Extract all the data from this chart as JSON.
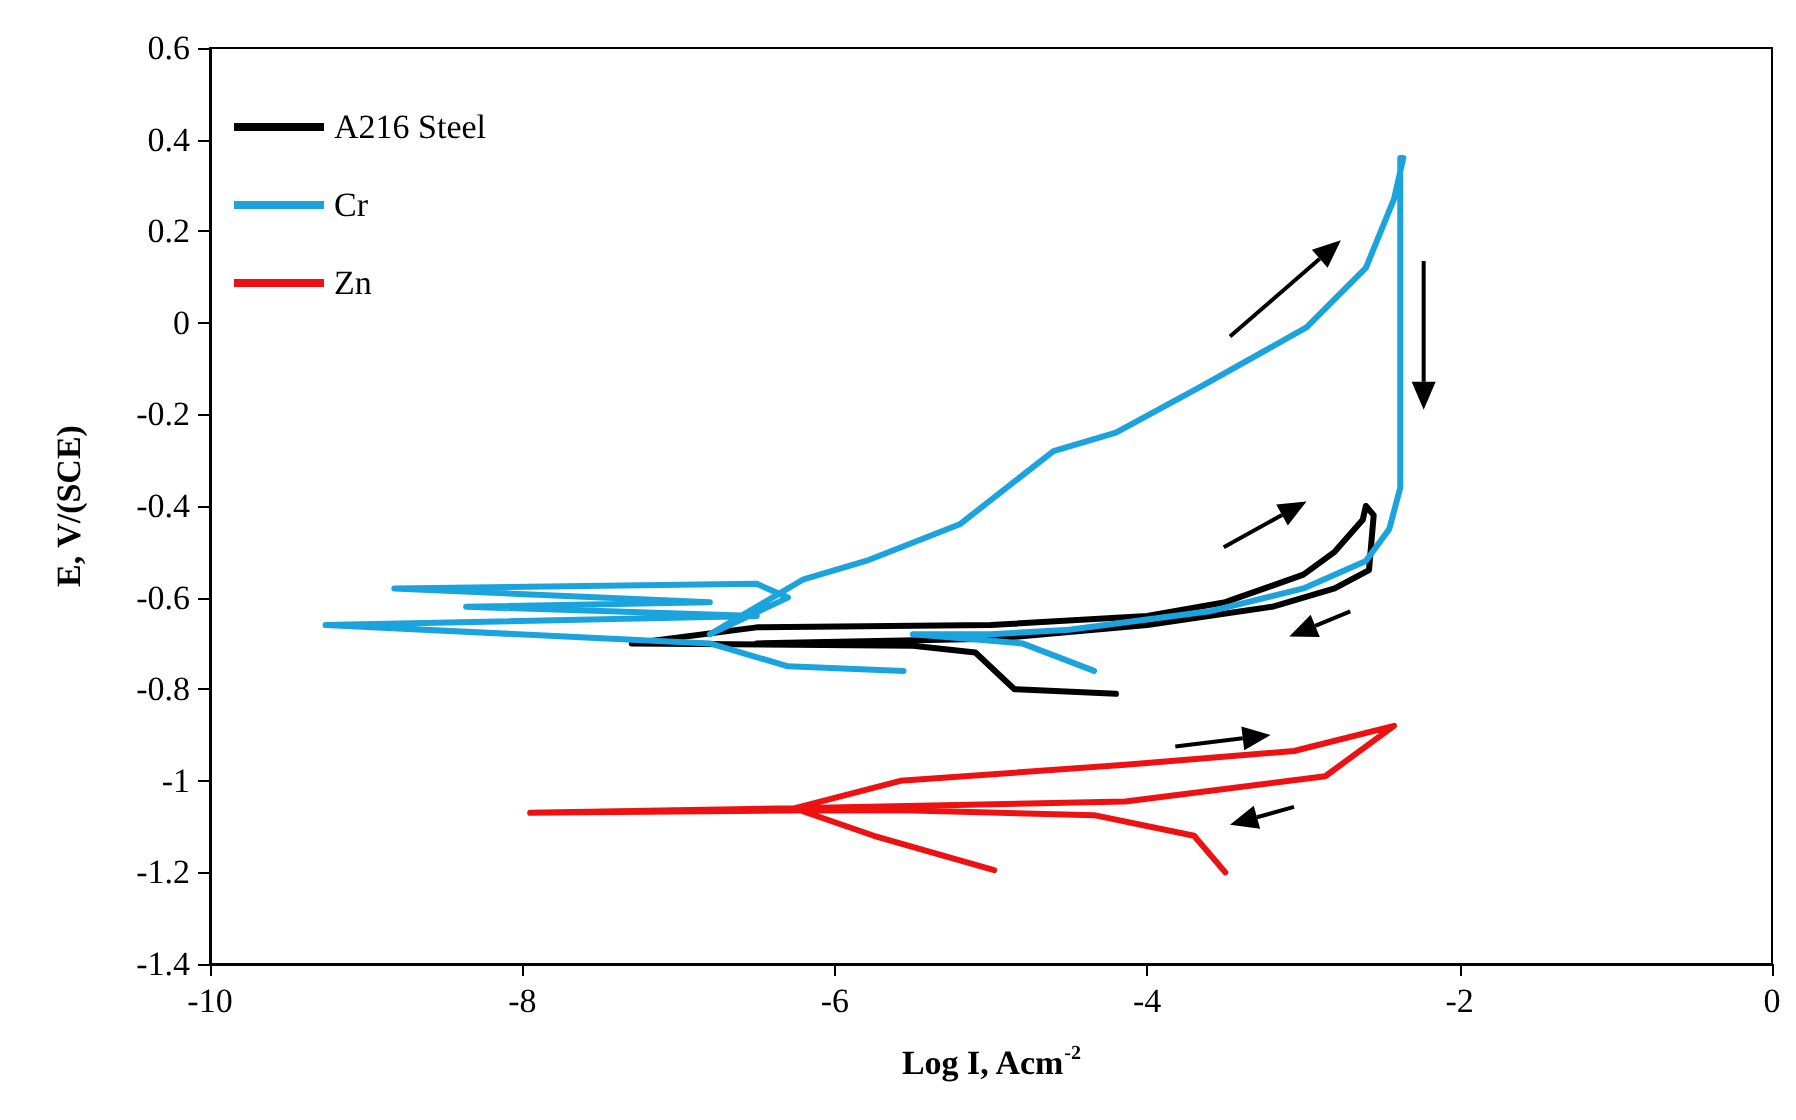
{
  "chart_data": {
    "type": "line",
    "xlabel": "Log I, Acm$^{-2}$",
    "ylabel": "E, V/(SCE)",
    "xlim": [
      -10,
      0
    ],
    "xticks": [
      -10,
      -8,
      -6,
      -4,
      -2,
      0
    ],
    "ylim": [
      -1.4,
      0.6
    ],
    "yticks": [
      -1.4,
      -1.2,
      -1,
      -0.8,
      -0.6,
      -0.4,
      -0.2,
      0,
      0.2,
      0.4,
      0.6
    ],
    "grid": false,
    "legend": "top left",
    "marker": "none",
    "line_style": "solid",
    "series": [
      {
        "name": "A216 Steel",
        "color": "#000000",
        "x": [
          -4.2,
          -4.85,
          -5.1,
          -5.5,
          -7.3,
          -6.5,
          -5,
          -4,
          -3.5,
          -3,
          -2.8,
          -2.62,
          -2.6,
          -2.55,
          -2.58,
          -2.8,
          -3.2,
          -4,
          -5,
          -6.5
        ],
        "values": [
          -0.81,
          -0.8,
          -0.72,
          -0.705,
          -0.7,
          -0.665,
          -0.66,
          -0.64,
          -0.61,
          -0.55,
          -0.5,
          -0.43,
          -0.4,
          -0.42,
          -0.54,
          -0.58,
          -0.62,
          -0.66,
          -0.69,
          -0.7
        ]
      },
      {
        "name": "Cr",
        "color": "#1aa3dd",
        "x": [
          -5.56,
          -6.3,
          -6.8,
          -9.26,
          -6.5,
          -8.36,
          -6.8,
          -8.82,
          -6.5,
          -6.3,
          -6.8,
          -6.2,
          -5.8,
          -5.2,
          -4.6,
          -4.2,
          -3.66,
          -2.98,
          -2.6,
          -2.42,
          -2.36,
          -2.38,
          -2.38,
          -2.45,
          -2.6,
          -3,
          -3.6,
          -4.5,
          -5,
          -5.5,
          -4.8,
          -4.34
        ],
        "values": [
          -0.76,
          -0.75,
          -0.7,
          -0.66,
          -0.64,
          -0.62,
          -0.61,
          -0.58,
          -0.57,
          -0.6,
          -0.68,
          -0.56,
          -0.52,
          -0.44,
          -0.28,
          -0.24,
          -0.14,
          -0.01,
          0.12,
          0.27,
          0.36,
          0.36,
          -0.36,
          -0.45,
          -0.52,
          -0.58,
          -0.63,
          -0.67,
          -0.68,
          -0.68,
          -0.7,
          -0.76
        ]
      },
      {
        "name": "Zn",
        "color": "#ee1111",
        "x": [
          -3.5,
          -3.7,
          -4.34,
          -5.5,
          -6.26,
          -7.95,
          -6.26,
          -5.58,
          -4.14,
          -3.06,
          -2.42,
          -2.86,
          -4.14,
          -6.26,
          -5.75,
          -4.98
        ],
        "values": [
          -1.2,
          -1.12,
          -1.075,
          -1.065,
          -1.065,
          -1.07,
          -1.06,
          -1.0,
          -0.965,
          -0.935,
          -0.88,
          -0.99,
          -1.045,
          -1.06,
          -1.12,
          -1.195
        ]
      }
    ]
  }
}
